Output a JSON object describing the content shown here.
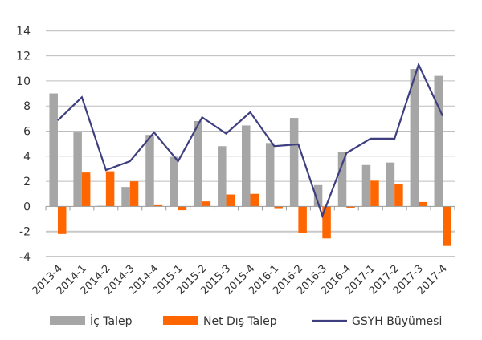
{
  "chart_data": {
    "type": "bar+line",
    "title": "",
    "xlabel": "",
    "ylabel": "",
    "ylim": [
      -4,
      14
    ],
    "yticks": [
      -4,
      -2,
      0,
      2,
      4,
      6,
      8,
      10,
      12,
      14
    ],
    "grid": true,
    "legend_position": "bottom",
    "categories": [
      "2013-4",
      "2014-1",
      "2014-2",
      "2014-3",
      "2014-4",
      "2015-1",
      "2015-2",
      "2015-3",
      "2015-4",
      "2016-1",
      "2016-2",
      "2016-3",
      "2016-4",
      "2017-1",
      "2017-2",
      "2017-3",
      "2017-4"
    ],
    "series": [
      {
        "name": "İç Talep",
        "kind": "bar",
        "color": "#a6a6a6",
        "values": [
          9.0,
          5.9,
          0.05,
          1.55,
          5.7,
          3.95,
          6.8,
          4.8,
          6.45,
          5.05,
          7.05,
          1.7,
          4.35,
          3.3,
          3.5,
          10.95,
          10.4
        ]
      },
      {
        "name": "Net Dış Talep",
        "kind": "bar",
        "color": "#ff6600",
        "values": [
          -2.2,
          2.7,
          2.8,
          2.0,
          0.1,
          -0.3,
          0.4,
          0.95,
          1.0,
          -0.2,
          -2.1,
          -2.55,
          -0.1,
          2.05,
          1.8,
          0.35,
          -3.15
        ]
      },
      {
        "name": "GSYH Büyümesi",
        "kind": "line",
        "color": "#3f3f7f",
        "values": [
          6.85,
          8.7,
          2.9,
          3.6,
          5.9,
          3.6,
          7.1,
          5.8,
          7.5,
          4.8,
          4.95,
          -0.75,
          4.25,
          5.4,
          5.4,
          11.3,
          7.2
        ]
      }
    ]
  }
}
